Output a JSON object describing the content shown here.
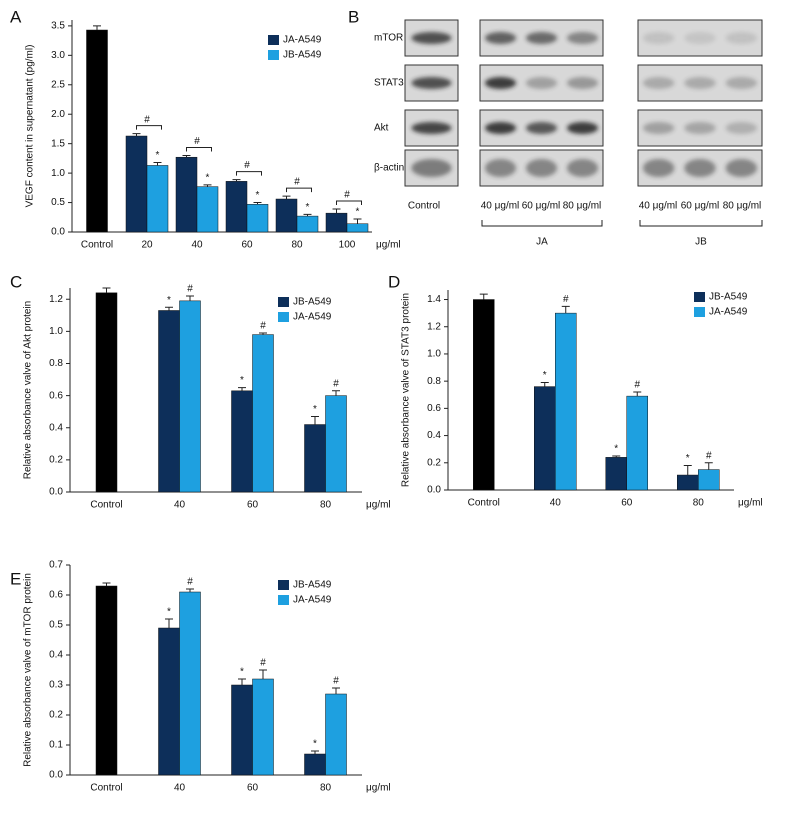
{
  "chart_data": [
    {
      "type": "bar",
      "panel": "A",
      "y_label": "VEGF content in supernatant (pg/ml)",
      "x_unit_label": "μg/ml",
      "categories": [
        "Control",
        "20",
        "40",
        "60",
        "80",
        "100"
      ],
      "series": [
        {
          "color": "#000000",
          "values": [
            3.43,
            null,
            null,
            null,
            null,
            null
          ],
          "errors": [
            0.07,
            null,
            null,
            null,
            null,
            null
          ]
        },
        {
          "name": "JA-A549",
          "color": "#0d2f5a",
          "values": [
            null,
            1.63,
            1.27,
            0.86,
            0.56,
            0.32
          ],
          "errors": [
            null,
            0.04,
            0.03,
            0.03,
            0.05,
            0.07
          ]
        },
        {
          "name": "JB-A549",
          "color": "#1ea0e0",
          "values": [
            null,
            1.13,
            0.77,
            0.47,
            0.27,
            0.14
          ],
          "errors": [
            null,
            0.05,
            0.03,
            0.03,
            0.03,
            0.08
          ],
          "markers": [
            null,
            "*",
            "*",
            "*",
            "*",
            "*"
          ]
        }
      ],
      "comparison_labels": [
        null,
        "#",
        "#",
        "#",
        "#",
        "#"
      ],
      "ylim": [
        0,
        3.6
      ],
      "yticks": [
        {
          "value": 0,
          "label": "0.0"
        },
        0.5,
        {
          "value": 1,
          "label": "1.0"
        },
        1.5,
        {
          "value": 2,
          "label": "2.0"
        },
        2.5,
        {
          "value": 3,
          "label": "3.0"
        },
        3.5
      ],
      "legend": "upper right"
    },
    {
      "type": "bar",
      "panel": "C",
      "y_label": "Relative absorbance valve of Akt protein",
      "x_unit_label": "μg/ml",
      "categories": [
        "Control",
        "40",
        "60",
        "80"
      ],
      "series": [
        {
          "color": "#000000",
          "values": [
            1.24,
            null,
            null,
            null
          ],
          "errors": [
            0.03,
            null,
            null,
            null
          ]
        },
        {
          "name": "JB-A549",
          "color": "#0d2f5a",
          "values": [
            null,
            1.13,
            0.63,
            0.42
          ],
          "errors": [
            null,
            0.02,
            0.02,
            0.05
          ],
          "markers": [
            null,
            "*",
            "*",
            "*"
          ]
        },
        {
          "name": "JA-A549",
          "color": "#1ea0e0",
          "values": [
            null,
            1.19,
            0.98,
            0.6
          ],
          "errors": [
            null,
            0.03,
            0.01,
            0.03
          ],
          "markers": [
            null,
            "#",
            "#",
            "#"
          ]
        }
      ],
      "ylim": [
        0,
        1.27
      ],
      "yticks": [
        {
          "value": 0,
          "label": "0.0"
        },
        0.2,
        0.4,
        0.6,
        0.8,
        {
          "value": 1,
          "label": "1.0"
        },
        1.2
      ],
      "legend": "upper right"
    },
    {
      "type": "bar",
      "panel": "D",
      "y_label": "Relative absorbance valve of STAT3 protein",
      "x_unit_label": "μg/ml",
      "categories": [
        "Control",
        "40",
        "60",
        "80"
      ],
      "series": [
        {
          "color": "#000000",
          "values": [
            1.4,
            null,
            null,
            null
          ],
          "errors": [
            0.04,
            null,
            null,
            null
          ]
        },
        {
          "name": "JB-A549",
          "color": "#0d2f5a",
          "values": [
            null,
            0.76,
            0.24,
            0.11
          ],
          "errors": [
            null,
            0.03,
            0.01,
            0.07
          ],
          "markers": [
            null,
            "*",
            "*",
            "*"
          ]
        },
        {
          "name": "JA-A549",
          "color": "#1ea0e0",
          "values": [
            null,
            1.3,
            0.69,
            0.15
          ],
          "errors": [
            null,
            0.05,
            0.03,
            0.05
          ],
          "markers": [
            null,
            "#",
            "#",
            "#"
          ]
        }
      ],
      "ylim": [
        0,
        1.47
      ],
      "yticks": [
        {
          "value": 0,
          "label": "0.0"
        },
        0.2,
        0.4,
        0.6,
        0.8,
        {
          "value": 1,
          "label": "1.0"
        },
        1.2,
        1.4
      ],
      "legend": "upper right"
    },
    {
      "type": "bar",
      "panel": "E",
      "y_label": "Relative absorbance valve of mTOR protein",
      "x_unit_label": "μg/ml",
      "categories": [
        "Control",
        "40",
        "60",
        "80"
      ],
      "series": [
        {
          "color": "#000000",
          "values": [
            0.63,
            null,
            null,
            null
          ],
          "errors": [
            0.01,
            null,
            null,
            null
          ]
        },
        {
          "name": "JB-A549",
          "color": "#0d2f5a",
          "values": [
            null,
            0.49,
            0.3,
            0.07
          ],
          "errors": [
            null,
            0.03,
            0.02,
            0.01
          ],
          "markers": [
            null,
            "*",
            "*",
            "*"
          ]
        },
        {
          "name": "JA-A549",
          "color": "#1ea0e0",
          "values": [
            null,
            0.61,
            0.32,
            0.27
          ],
          "errors": [
            null,
            0.01,
            0.03,
            0.02
          ],
          "markers": [
            null,
            "#",
            "#",
            "#"
          ]
        }
      ],
      "ylim": [
        0,
        0.7
      ],
      "yticks": [
        {
          "value": 0,
          "label": "0.0"
        },
        0.1,
        0.2,
        0.3,
        0.4,
        0.5,
        0.6,
        0.7
      ],
      "legend": "upper right"
    }
  ],
  "blot": {
    "panel": "B",
    "rows": [
      "mTOR",
      "STAT3",
      "Akt",
      "β-actin"
    ],
    "columns": [
      "Control",
      "40 μg/ml",
      "60 μg/ml",
      "80 μg/ml",
      "40 μg/ml",
      "60 μg/ml",
      "80 μg/ml"
    ],
    "groups": [
      "JA",
      "JB"
    ]
  }
}
